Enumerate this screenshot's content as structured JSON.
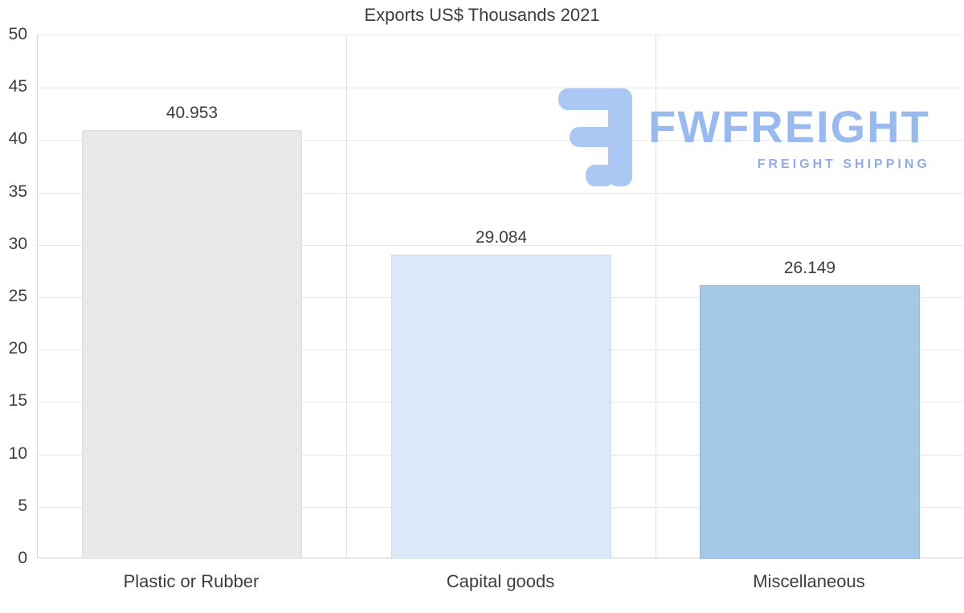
{
  "chart_data": {
    "type": "bar",
    "title": "Exports US$ Thousands 2021",
    "categories": [
      "Plastic or Rubber",
      "Capital goods",
      "Miscellaneous"
    ],
    "values": [
      40.953,
      29.084,
      26.149
    ],
    "value_labels": [
      "40.953",
      "29.084",
      "26.149"
    ],
    "bar_fill_colors": [
      "#e9e9e9",
      "#dce9f8",
      "#a5c8e8"
    ],
    "bar_border_colors": [
      "#dddddd",
      "#cbdcf0",
      "#93bade"
    ],
    "ylim": [
      0,
      50
    ],
    "yticks": [
      "0",
      "5",
      "10",
      "15",
      "20",
      "25",
      "30",
      "35",
      "40",
      "45",
      "50"
    ],
    "grid": true,
    "legend": "none",
    "xlabel": "",
    "ylabel": ""
  },
  "watermark": {
    "brand": "FWFREIGHT",
    "tagline": "FREIGHT SHIPPING",
    "icon": "fwfreight-logo-icon",
    "color": "#98baee"
  }
}
